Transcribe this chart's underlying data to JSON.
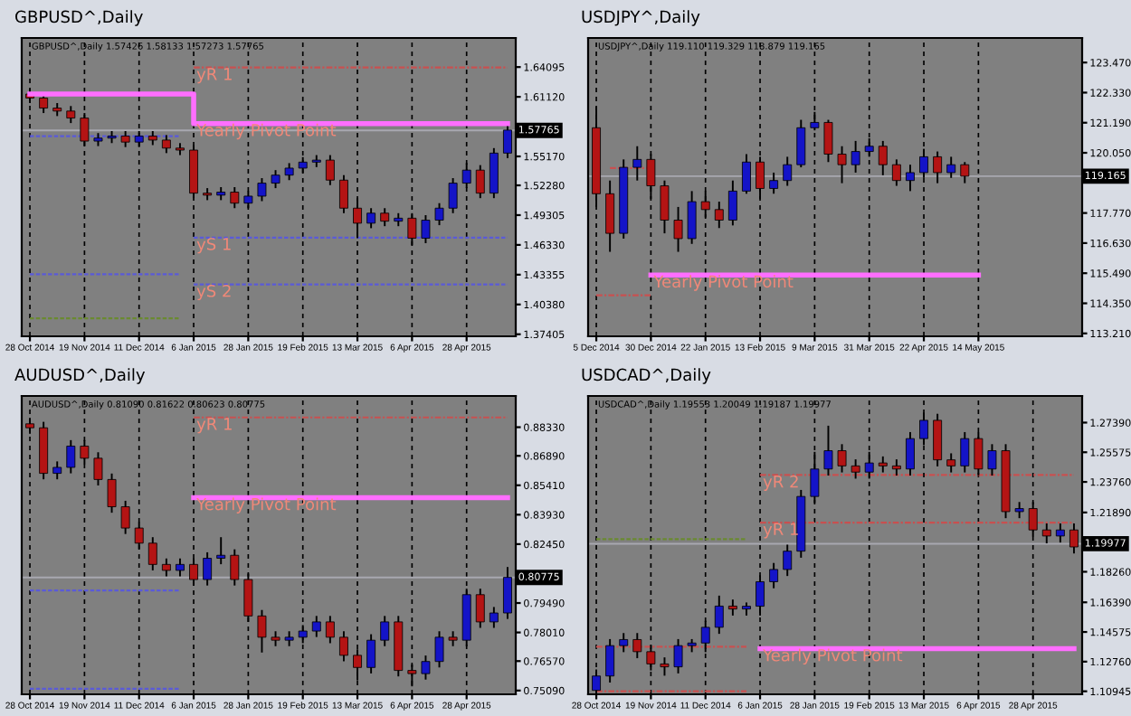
{
  "chart_data": [
    {
      "type": "candlestick",
      "title": "GBPUSD^,Daily",
      "annotations": [
        "GBPUSD^,Daily 1.57426 1.58133 1.57273 1.57765"
      ],
      "categories": [
        "28 Oct 2014",
        null,
        null,
        null,
        "19 Nov 2014",
        null,
        null,
        null,
        "11 Dec 2014",
        null,
        null,
        null,
        "6 Jan 2015",
        null,
        null,
        null,
        "28 Jan 2015",
        null,
        null,
        null,
        "19 Feb 2015",
        null,
        null,
        null,
        "13 Mar 2015",
        null,
        null,
        null,
        "6 Apr 2015",
        null,
        null,
        null,
        "28 Apr 2015",
        null,
        null,
        null
      ],
      "ohlc": [
        [
          1.614,
          1.619,
          1.605,
          1.61
        ],
        [
          1.61,
          1.615,
          1.595,
          1.6
        ],
        [
          1.6,
          1.605,
          1.592,
          1.597
        ],
        [
          1.597,
          1.602,
          1.585,
          1.59
        ],
        [
          1.59,
          1.595,
          1.562,
          1.567
        ],
        [
          1.567,
          1.575,
          1.562,
          1.57
        ],
        [
          1.57,
          1.577,
          1.565,
          1.572
        ],
        [
          1.572,
          1.577,
          1.561,
          1.566
        ],
        [
          1.566,
          1.577,
          1.561,
          1.572
        ],
        [
          1.572,
          1.577,
          1.563,
          1.568
        ],
        [
          1.568,
          1.573,
          1.555,
          1.56
        ],
        [
          1.56,
          1.565,
          1.553,
          1.558
        ],
        [
          1.558,
          1.563,
          1.51,
          1.515
        ],
        [
          1.515,
          1.52,
          1.508,
          1.513
        ],
        [
          1.513,
          1.521,
          1.508,
          1.516
        ],
        [
          1.516,
          1.521,
          1.5,
          1.505
        ],
        [
          1.505,
          1.517,
          1.5,
          1.512
        ],
        [
          1.512,
          1.53,
          1.507,
          1.525
        ],
        [
          1.525,
          1.538,
          1.52,
          1.533
        ],
        [
          1.533,
          1.545,
          1.528,
          1.54
        ],
        [
          1.54,
          1.551,
          1.535,
          1.546
        ],
        [
          1.546,
          1.553,
          1.541,
          1.548
        ],
        [
          1.548,
          1.553,
          1.523,
          1.528
        ],
        [
          1.528,
          1.533,
          1.495,
          1.5
        ],
        [
          1.5,
          1.51,
          1.47,
          1.485
        ],
        [
          1.485,
          1.5,
          1.48,
          1.495
        ],
        [
          1.495,
          1.5,
          1.482,
          1.487
        ],
        [
          1.487,
          1.495,
          1.482,
          1.49
        ],
        [
          1.49,
          1.495,
          1.463,
          1.47
        ],
        [
          1.47,
          1.493,
          1.465,
          1.488
        ],
        [
          1.488,
          1.505,
          1.483,
          1.5
        ],
        [
          1.5,
          1.53,
          1.495,
          1.525
        ],
        [
          1.525,
          1.545,
          1.52,
          1.538
        ],
        [
          1.538,
          1.543,
          1.51,
          1.515
        ],
        [
          1.515,
          1.56,
          1.51,
          1.555
        ],
        [
          1.555,
          1.583,
          1.55,
          1.578
        ]
      ],
      "colors": [
        "#b41414",
        "#b41414",
        "#b41414",
        "#b41414",
        "#b41414",
        "#1414c8",
        "#1414c8",
        "#b41414",
        "#1414c8",
        "#b41414",
        "#b41414",
        "#b41414",
        "#b41414",
        "#b41414",
        "#1414c8",
        "#b41414",
        "#1414c8",
        "#1414c8",
        "#1414c8",
        "#1414c8",
        "#1414c8",
        "#1414c8",
        "#b41414",
        "#b41414",
        "#b41414",
        "#1414c8",
        "#b41414",
        "#1414c8",
        "#b41414",
        "#1414c8",
        "#1414c8",
        "#1414c8",
        "#1414c8",
        "#b41414",
        "#1414c8",
        "#1414c8"
      ],
      "series": [
        {
          "type": "step",
          "name": "Yearly Pivot Point",
          "color": "#ff6eff",
          "line_style": "solid",
          "values": [
            1.614,
            1.614,
            1.614,
            1.614,
            1.614,
            1.614,
            1.614,
            1.614,
            1.614,
            1.614,
            1.614,
            1.614,
            1.5845,
            1.5845,
            1.5845,
            1.5845,
            1.5845,
            1.5845,
            1.5845,
            1.5845,
            1.5845,
            1.5845,
            1.5845,
            1.5845,
            1.5845,
            1.5845,
            1.5845,
            1.5845,
            1.5845,
            1.5845,
            1.5845,
            1.5845,
            1.5845,
            1.5845,
            1.5845,
            1.5845
          ]
        },
        {
          "type": "line",
          "name": "yR 1",
          "color": "#c85050",
          "line_style": "dashdot",
          "values": [
            null,
            null,
            null,
            null,
            null,
            null,
            null,
            null,
            null,
            null,
            null,
            null,
            1.6405,
            1.6405,
            1.6405,
            1.6405,
            1.6405,
            1.6405,
            1.6405,
            1.6405,
            1.6405,
            1.6405,
            1.6405,
            1.6405,
            1.6405,
            1.6405,
            1.6405,
            1.6405,
            1.6405,
            1.6405,
            1.6405,
            1.6405,
            1.6405,
            1.6405,
            1.6405,
            1.6405
          ]
        },
        {
          "type": "line",
          "name": "yS 1",
          "color": "#5a5ad8",
          "line_style": "dashed",
          "values": [
            null,
            null,
            null,
            null,
            null,
            null,
            null,
            null,
            null,
            null,
            null,
            null,
            1.4706,
            1.4706,
            1.4706,
            1.4706,
            1.4706,
            1.4706,
            1.4706,
            1.4706,
            1.4706,
            1.4706,
            1.4706,
            1.4706,
            1.4706,
            1.4706,
            1.4706,
            1.4706,
            1.4706,
            1.4706,
            1.4706,
            1.4706,
            1.4706,
            1.4706,
            1.4706,
            1.4706
          ]
        },
        {
          "type": "line",
          "name": "yS 2",
          "color": "#5a5ad8",
          "line_style": "dashed",
          "values": [
            null,
            null,
            null,
            null,
            null,
            null,
            null,
            null,
            null,
            null,
            null,
            null,
            1.4238,
            1.4238,
            1.4238,
            1.4238,
            1.4238,
            1.4238,
            1.4238,
            1.4238,
            1.4238,
            1.4238,
            1.4238,
            1.4238,
            1.4238,
            1.4238,
            1.4238,
            1.4238,
            1.4238,
            1.4238,
            1.4238,
            1.4238,
            1.4238,
            1.4238,
            1.4238,
            1.4238
          ]
        },
        {
          "type": "line",
          "color": "#5a5ad8",
          "line_style": "dashed",
          "values": [
            1.572,
            1.572,
            1.572,
            1.572,
            1.572,
            1.572,
            1.572,
            1.572,
            1.572,
            1.572,
            1.572,
            1.572,
            null,
            null,
            null,
            null,
            null,
            null,
            null,
            null,
            null,
            null,
            null,
            null,
            null,
            null,
            null,
            null,
            null,
            null,
            null,
            null,
            null,
            null,
            null,
            null
          ]
        },
        {
          "type": "line",
          "color": "#5a5ad8",
          "line_style": "dashed",
          "values": [
            1.434,
            1.434,
            1.434,
            1.434,
            1.434,
            1.434,
            1.434,
            1.434,
            1.434,
            1.434,
            1.434,
            1.434,
            null,
            null,
            null,
            null,
            null,
            null,
            null,
            null,
            null,
            null,
            null,
            null,
            null,
            null,
            null,
            null,
            null,
            null,
            null,
            null,
            null,
            null,
            null,
            null
          ]
        },
        {
          "type": "line",
          "color": "#6a8a30",
          "line_style": "dashed",
          "values": [
            1.39,
            1.39,
            1.39,
            1.39,
            1.39,
            1.39,
            1.39,
            1.39,
            1.39,
            1.39,
            1.39,
            1.39,
            null,
            null,
            null,
            null,
            null,
            null,
            null,
            null,
            null,
            null,
            null,
            null,
            null,
            null,
            null,
            null,
            null,
            null,
            null,
            null,
            null,
            null,
            null,
            null
          ]
        }
      ],
      "ref_lines": [
        {
          "axis": "y",
          "value": 1.57765,
          "label": "1.57765",
          "color": "#a8a8b0"
        }
      ],
      "ylim": [
        1.372,
        1.67
      ],
      "yticks": [
        1.37405,
        {
          "value": 1.4038,
          "label": "1.40380"
        },
        1.43355,
        {
          "value": 1.4633,
          "label": "1.46330"
        },
        1.49305,
        {
          "value": 1.5228,
          "label": "1.52280"
        },
        {
          "value": 1.5517,
          "label": "1.55170"
        },
        {
          "value": 1.6112,
          "label": "1.61120"
        },
        1.64095
      ],
      "grid": "x"
    },
    {
      "type": "candlestick",
      "title": "USDJPY^,Daily",
      "annotations": [
        "USDJPY^,Daily 119.110 119.329 118.879 119.165"
      ],
      "categories": [
        "5 Dec 2014",
        null,
        null,
        null,
        "30 Dec 2014",
        null,
        null,
        null,
        "22 Jan 2015",
        null,
        null,
        null,
        "13 Feb 2015",
        null,
        null,
        null,
        "9 Mar 2015",
        null,
        null,
        null,
        "31 Mar 2015",
        null,
        null,
        null,
        "22 Apr 2015",
        null,
        null,
        null,
        "14 May 2015",
        null,
        null,
        null,
        null,
        null,
        null,
        null
      ],
      "ohlc": [
        [
          121.0,
          121.8,
          118.0,
          118.5
        ],
        [
          118.5,
          119.0,
          116.3,
          117.0
        ],
        [
          117.0,
          119.8,
          116.8,
          119.5
        ],
        [
          119.5,
          120.3,
          119.0,
          119.8
        ],
        [
          119.8,
          120.0,
          118.3,
          118.8
        ],
        [
          118.8,
          119.0,
          117.0,
          117.5
        ],
        [
          117.5,
          118.0,
          116.3,
          116.8
        ],
        [
          116.8,
          118.6,
          116.6,
          118.2
        ],
        [
          118.2,
          118.6,
          117.6,
          117.9
        ],
        [
          117.9,
          118.2,
          117.2,
          117.5
        ],
        [
          117.5,
          119.0,
          117.3,
          118.6
        ],
        [
          118.6,
          120.0,
          118.5,
          119.7
        ],
        [
          119.7,
          119.9,
          118.3,
          118.7
        ],
        [
          118.7,
          119.3,
          118.5,
          119.0
        ],
        [
          119.0,
          119.9,
          118.8,
          119.6
        ],
        [
          119.6,
          121.3,
          119.5,
          121.0
        ],
        [
          121.0,
          121.6,
          120.9,
          121.2
        ],
        [
          121.2,
          121.3,
          119.7,
          120.0
        ],
        [
          120.0,
          120.3,
          118.9,
          119.6
        ],
        [
          119.6,
          120.5,
          119.3,
          120.1
        ],
        [
          120.1,
          120.6,
          119.9,
          120.3
        ],
        [
          120.3,
          120.5,
          119.2,
          119.6
        ],
        [
          119.6,
          119.8,
          118.8,
          119.0
        ],
        [
          119.0,
          119.6,
          118.6,
          119.3
        ],
        [
          119.3,
          120.2,
          119.1,
          119.9
        ],
        [
          119.9,
          120.1,
          118.9,
          119.3
        ],
        [
          119.3,
          119.9,
          119.1,
          119.6
        ],
        [
          119.6,
          119.7,
          118.9,
          119.165
        ],
        null,
        null,
        null,
        null,
        null,
        null,
        null,
        null
      ],
      "colors": [
        "#b41414",
        "#b41414",
        "#1414c8",
        "#1414c8",
        "#b41414",
        "#b41414",
        "#b41414",
        "#1414c8",
        "#b41414",
        "#b41414",
        "#1414c8",
        "#1414c8",
        "#b41414",
        "#1414c8",
        "#1414c8",
        "#1414c8",
        "#1414c8",
        "#b41414",
        "#b41414",
        "#1414c8",
        "#1414c8",
        "#b41414",
        "#b41414",
        "#1414c8",
        "#1414c8",
        "#b41414",
        "#1414c8",
        "#b41414",
        null,
        null,
        null,
        null,
        null,
        null,
        null,
        null
      ],
      "series": [
        {
          "type": "step",
          "name": "Yearly Pivot Point",
          "color": "#ff6eff",
          "line_style": "solid",
          "values": [
            null,
            null,
            null,
            null,
            115.42,
            115.42,
            115.42,
            115.42,
            115.42,
            115.42,
            115.42,
            115.42,
            115.42,
            115.42,
            115.42,
            115.42,
            115.42,
            115.42,
            115.42,
            115.42,
            115.42,
            115.42,
            115.42,
            115.42,
            115.42,
            115.42,
            115.42,
            115.42,
            115.42,
            null,
            null,
            null,
            null,
            null,
            null,
            null
          ]
        },
        {
          "type": "line",
          "color": "#c85050",
          "line_style": "dashdot",
          "values": [
            null,
            119.47,
            119.47,
            119.47,
            119.47,
            null,
            null,
            null,
            null,
            null,
            null,
            null,
            null,
            null,
            null,
            null,
            null,
            null,
            null,
            null,
            null,
            null,
            null,
            null,
            null,
            null,
            null,
            null,
            null,
            null,
            null,
            null,
            null,
            null,
            null,
            null
          ]
        },
        {
          "type": "line",
          "color": "#c85050",
          "line_style": "dashdot",
          "values": [
            114.65,
            114.65,
            114.65,
            114.65,
            114.65,
            null,
            null,
            null,
            null,
            null,
            null,
            null,
            null,
            null,
            null,
            null,
            null,
            null,
            null,
            null,
            null,
            null,
            null,
            null,
            null,
            null,
            null,
            null,
            null,
            null,
            null,
            null,
            null,
            null,
            null,
            null
          ]
        }
      ],
      "ref_lines": [
        {
          "axis": "y",
          "value": 119.165,
          "label": "119.165",
          "color": "#a8a8b0"
        }
      ],
      "ylim": [
        113.1,
        124.4
      ],
      "yticks": [
        {
          "value": 113.21,
          "label": "113.210"
        },
        {
          "value": 114.35,
          "label": "114.350"
        },
        {
          "value": 115.49,
          "label": "115.490"
        },
        {
          "value": 116.63,
          "label": "116.630"
        },
        {
          "value": 117.77,
          "label": "117.770"
        },
        {
          "value": 120.05,
          "label": "120.050"
        },
        {
          "value": 121.19,
          "label": "121.190"
        },
        {
          "value": 122.33,
          "label": "122.330"
        },
        {
          "value": 123.47,
          "label": "123.470"
        }
      ],
      "grid": "x"
    },
    {
      "type": "candlestick",
      "title": "AUDUSD^,Daily",
      "annotations": [
        "AUDUSD^,Daily 0.81090 0.81622 0.80623 0.80775"
      ],
      "categories": [
        "28 Oct 2014",
        null,
        null,
        null,
        "19 Nov 2014",
        null,
        null,
        null,
        "11 Dec 2014",
        null,
        null,
        null,
        "6 Jan 2015",
        null,
        null,
        null,
        "28 Jan 2015",
        null,
        null,
        null,
        "19 Feb 2015",
        null,
        null,
        null,
        "13 Mar 2015",
        null,
        null,
        null,
        "6 Apr 2015",
        null,
        null,
        null,
        "28 Apr 2015",
        null,
        null,
        null
      ],
      "ohlc": [
        [
          0.885,
          0.888,
          0.88,
          0.883
        ],
        [
          0.883,
          0.886,
          0.8571,
          0.8601
        ],
        [
          0.8601,
          0.8661,
          0.8571,
          0.8631
        ],
        [
          0.8631,
          0.8768,
          0.8601,
          0.8738
        ],
        [
          0.8738,
          0.8768,
          0.8647,
          0.8677
        ],
        [
          0.8677,
          0.8707,
          0.854,
          0.857
        ],
        [
          0.857,
          0.86,
          0.8403,
          0.8433
        ],
        [
          0.8433,
          0.8463,
          0.8296,
          0.8326
        ],
        [
          0.8326,
          0.8356,
          0.822,
          0.825
        ],
        [
          0.825,
          0.828,
          0.8113,
          0.8143
        ],
        [
          0.8143,
          0.8173,
          0.8083,
          0.8113
        ],
        [
          0.8113,
          0.8173,
          0.8083,
          0.8143
        ],
        [
          0.8143,
          0.8173,
          0.8037,
          0.8067
        ],
        [
          0.8067,
          0.8204,
          0.8037,
          0.8174
        ],
        [
          0.8174,
          0.828,
          0.8144,
          0.8189
        ],
        [
          0.8189,
          0.8219,
          0.8037,
          0.8067
        ],
        [
          0.8067,
          0.8097,
          0.7854,
          0.7884
        ],
        [
          0.7884,
          0.7914,
          0.77,
          0.7777
        ],
        [
          0.7777,
          0.7807,
          0.7732,
          0.7762
        ],
        [
          0.7762,
          0.7807,
          0.7732,
          0.7777
        ],
        [
          0.7777,
          0.7838,
          0.7747,
          0.7808
        ],
        [
          0.7808,
          0.7884,
          0.7778,
          0.7854
        ],
        [
          0.7854,
          0.7884,
          0.7747,
          0.7777
        ],
        [
          0.7777,
          0.7807,
          0.7656,
          0.7686
        ],
        [
          0.7686,
          0.7716,
          0.756,
          0.7625
        ],
        [
          0.7625,
          0.7792,
          0.7595,
          0.7762
        ],
        [
          0.7762,
          0.7884,
          0.7732,
          0.7854
        ],
        [
          0.7854,
          0.7884,
          0.758,
          0.761
        ],
        [
          0.761,
          0.764,
          0.753,
          0.7594
        ],
        [
          0.7594,
          0.7685,
          0.7564,
          0.7655
        ],
        [
          0.7655,
          0.7807,
          0.7625,
          0.7777
        ],
        [
          0.7777,
          0.7807,
          0.7732,
          0.7762
        ],
        [
          0.7762,
          0.8021,
          0.7732,
          0.7991
        ],
        [
          0.7991,
          0.8021,
          0.7824,
          0.7854
        ],
        [
          0.7854,
          0.7929,
          0.7824,
          0.7899
        ],
        [
          0.7899,
          0.813,
          0.7869,
          0.8078
        ]
      ],
      "colors": [
        "#b41414",
        "#b41414",
        "#1414c8",
        "#1414c8",
        "#b41414",
        "#b41414",
        "#b41414",
        "#b41414",
        "#b41414",
        "#b41414",
        "#b41414",
        "#1414c8",
        "#b41414",
        "#1414c8",
        "#1414c8",
        "#b41414",
        "#b41414",
        "#b41414",
        "#b41414",
        "#1414c8",
        "#1414c8",
        "#1414c8",
        "#b41414",
        "#b41414",
        "#b41414",
        "#1414c8",
        "#1414c8",
        "#b41414",
        "#b41414",
        "#1414c8",
        "#1414c8",
        "#b41414",
        "#1414c8",
        "#b41414",
        "#1414c8",
        "#1414c8"
      ],
      "series": [
        {
          "type": "step",
          "name": "Yearly Pivot Point",
          "color": "#ff6eff",
          "line_style": "solid",
          "values": [
            null,
            null,
            null,
            null,
            null,
            null,
            null,
            null,
            null,
            null,
            null,
            null,
            0.8479,
            0.8479,
            0.8479,
            0.8479,
            0.8479,
            0.8479,
            0.8479,
            0.8479,
            0.8479,
            0.8479,
            0.8479,
            0.8479,
            0.8479,
            0.8479,
            0.8479,
            0.8479,
            0.8479,
            0.8479,
            0.8479,
            0.8479,
            0.8479,
            0.8479,
            0.8479,
            0.8479
          ]
        },
        {
          "type": "line",
          "name": "yR 1",
          "color": "#c85050",
          "line_style": "dashdot",
          "values": [
            null,
            null,
            null,
            null,
            null,
            null,
            null,
            null,
            null,
            null,
            null,
            null,
            0.8882,
            0.8882,
            0.8882,
            0.8882,
            0.8882,
            0.8882,
            0.8882,
            0.8882,
            0.8882,
            0.8882,
            0.8882,
            0.8882,
            0.8882,
            0.8882,
            0.8882,
            0.8882,
            0.8882,
            0.8882,
            0.8882,
            0.8882,
            0.8882,
            0.8882,
            0.8882,
            0.8882
          ]
        },
        {
          "type": "line",
          "color": "#5a5ad8",
          "line_style": "dashed",
          "values": [
            0.8012,
            0.8012,
            0.8012,
            0.8012,
            0.8012,
            0.8012,
            0.8012,
            0.8012,
            0.8012,
            0.8012,
            0.8012,
            0.8012,
            null,
            null,
            null,
            null,
            null,
            null,
            null,
            null,
            null,
            null,
            null,
            null,
            null,
            null,
            null,
            null,
            null,
            null,
            null,
            null,
            null,
            null,
            null,
            null
          ]
        },
        {
          "type": "line",
          "color": "#5a5ad8",
          "line_style": "dashed",
          "values": [
            0.7518,
            0.7518,
            0.7518,
            0.7518,
            0.7518,
            0.7518,
            0.7518,
            0.7518,
            0.7518,
            0.7518,
            0.7518,
            0.7518,
            null,
            null,
            null,
            null,
            null,
            null,
            null,
            null,
            null,
            null,
            null,
            null,
            null,
            null,
            null,
            null,
            null,
            null,
            null,
            null,
            null,
            null,
            null,
            null
          ]
        }
      ],
      "ref_lines": [
        {
          "axis": "y",
          "value": 0.80775,
          "label": "0.80775",
          "color": "#a8a8b0"
        }
      ],
      "ylim": [
        0.749,
        0.899
      ],
      "yticks": [
        {
          "value": 0.7509,
          "label": "0.75090"
        },
        {
          "value": 0.7657,
          "label": "0.76570"
        },
        {
          "value": 0.7801,
          "label": "0.78010"
        },
        {
          "value": 0.7949,
          "label": "0.79490"
        },
        {
          "value": 0.8245,
          "label": "0.82450"
        },
        {
          "value": 0.8393,
          "label": "0.83930"
        },
        {
          "value": 0.8541,
          "label": "0.85410"
        },
        {
          "value": 0.8689,
          "label": "0.86890"
        },
        {
          "value": 0.8833,
          "label": "0.88330"
        }
      ],
      "grid": "x"
    },
    {
      "type": "candlestick",
      "title": "USDCAD^,Daily",
      "annotations": [
        "USDCAD^,Daily 1.19553 1.20049 1.19187 1.19977"
      ],
      "categories": [
        "28 Oct 2014",
        null,
        null,
        null,
        "19 Nov 2014",
        null,
        null,
        null,
        "11 Dec 2014",
        null,
        null,
        null,
        "6 Jan 2015",
        null,
        null,
        null,
        "28 Jan 2015",
        null,
        null,
        null,
        "19 Feb 2015",
        null,
        null,
        null,
        "13 Mar 2015",
        null,
        null,
        null,
        "6 Apr 2015",
        null,
        null,
        null,
        "28 Apr 2015",
        null,
        null,
        null
      ],
      "ohlc": [
        [
          1.11,
          1.1228,
          1.106,
          1.1188
        ],
        [
          1.1188,
          1.1414,
          1.1148,
          1.1374
        ],
        [
          1.1374,
          1.1451,
          1.1334,
          1.1411
        ],
        [
          1.1411,
          1.1451,
          1.1297,
          1.1337
        ],
        [
          1.1337,
          1.1377,
          1.1222,
          1.1262
        ],
        [
          1.1262,
          1.1302,
          1.119,
          1.1244
        ],
        [
          1.1244,
          1.1414,
          1.1204,
          1.1374
        ],
        [
          1.1374,
          1.1414,
          1.1334,
          1.139
        ],
        [
          1.139,
          1.1526,
          1.1334,
          1.1486
        ],
        [
          1.1486,
          1.168,
          1.1446,
          1.1616
        ],
        [
          1.1616,
          1.1656,
          1.1558,
          1.1598
        ],
        [
          1.1598,
          1.1638,
          1.1558,
          1.1615
        ],
        [
          1.1615,
          1.1805,
          1.1558,
          1.1765
        ],
        [
          1.1765,
          1.188,
          1.1725,
          1.184
        ],
        [
          1.184,
          1.1992,
          1.18,
          1.1952
        ],
        [
          1.1952,
          1.2327,
          1.1912,
          1.2287
        ],
        [
          1.2287,
          1.256,
          1.2247,
          1.2455
        ],
        [
          1.2455,
          1.272,
          1.2415,
          1.2567
        ],
        [
          1.2567,
          1.2607,
          1.2434,
          1.2474
        ],
        [
          1.2474,
          1.2514,
          1.2396,
          1.2436
        ],
        [
          1.2436,
          1.256,
          1.2396,
          1.2492
        ],
        [
          1.2492,
          1.2532,
          1.2434,
          1.2474
        ],
        [
          1.2474,
          1.2514,
          1.2415,
          1.2455
        ],
        [
          1.2455,
          1.2681,
          1.2415,
          1.2641
        ],
        [
          1.2641,
          1.28,
          1.2601,
          1.2753
        ],
        [
          1.2753,
          1.2793,
          1.2471,
          1.2511
        ],
        [
          1.2511,
          1.2551,
          1.2434,
          1.2474
        ],
        [
          1.2474,
          1.2681,
          1.2434,
          1.2641
        ],
        [
          1.2641,
          1.2681,
          1.2415,
          1.2455
        ],
        [
          1.2455,
          1.2607,
          1.2415,
          1.2567
        ],
        [
          1.2567,
          1.2607,
          1.2154,
          1.2194
        ],
        [
          1.2194,
          1.2253,
          1.2154,
          1.2213
        ],
        [
          1.2213,
          1.2253,
          1.2042,
          1.2082
        ],
        [
          1.2082,
          1.2122,
          1.2,
          1.2045
        ],
        [
          1.2045,
          1.2122,
          1.2005,
          1.2082
        ],
        [
          1.2082,
          1.2122,
          1.1938,
          1.1978
        ]
      ],
      "colors": [
        "#1414c8",
        "#1414c8",
        "#1414c8",
        "#b41414",
        "#b41414",
        "#b41414",
        "#1414c8",
        "#1414c8",
        "#1414c8",
        "#1414c8",
        "#b41414",
        "#1414c8",
        "#1414c8",
        "#1414c8",
        "#1414c8",
        "#1414c8",
        "#1414c8",
        "#1414c8",
        "#b41414",
        "#b41414",
        "#1414c8",
        "#b41414",
        "#b41414",
        "#1414c8",
        "#1414c8",
        "#b41414",
        "#b41414",
        "#1414c8",
        "#b41414",
        "#1414c8",
        "#b41414",
        "#1414c8",
        "#b41414",
        "#b41414",
        "#1414c8",
        "#b41414"
      ],
      "series": [
        {
          "type": "step",
          "name": "Yearly Pivot Point",
          "color": "#ff6eff",
          "line_style": "solid",
          "values": [
            null,
            null,
            null,
            null,
            null,
            null,
            null,
            null,
            null,
            null,
            null,
            null,
            1.1355,
            1.1355,
            1.1355,
            1.1355,
            1.1355,
            1.1355,
            1.1355,
            1.1355,
            1.1355,
            1.1355,
            1.1355,
            1.1355,
            1.1355,
            1.1355,
            1.1355,
            1.1355,
            1.1355,
            1.1355,
            1.1355,
            1.1355,
            1.1355,
            1.1355,
            1.1355,
            1.1355
          ]
        },
        {
          "type": "line",
          "name": "yR 2",
          "color": "#c85050",
          "line_style": "dashdot",
          "values": [
            null,
            null,
            null,
            null,
            null,
            null,
            null,
            null,
            null,
            null,
            null,
            null,
            1.2418,
            1.2418,
            1.2418,
            1.2418,
            1.2418,
            1.2418,
            1.2418,
            1.2418,
            1.2418,
            1.2418,
            1.2418,
            1.2418,
            1.2418,
            1.2418,
            1.2418,
            1.2418,
            1.2418,
            1.2418,
            1.2418,
            1.2418,
            1.2418,
            1.2418,
            1.2418,
            1.2418
          ]
        },
        {
          "type": "line",
          "name": "yR 1",
          "color": "#c85050",
          "line_style": "dashdot",
          "values": [
            null,
            null,
            null,
            null,
            null,
            null,
            null,
            null,
            null,
            null,
            null,
            null,
            1.2127,
            1.2127,
            1.2127,
            1.2127,
            1.2127,
            1.2127,
            1.2127,
            1.2127,
            1.2127,
            1.2127,
            1.2127,
            1.2127,
            1.2127,
            1.2127,
            1.2127,
            1.2127,
            1.2127,
            1.2127,
            1.2127,
            1.2127,
            1.2127,
            1.2127,
            1.2127,
            1.2127
          ]
        },
        {
          "type": "line",
          "color": "#c85050",
          "line_style": "dashdot",
          "values": [
            1.1367,
            1.1367,
            1.1367,
            1.1367,
            1.1367,
            1.1367,
            1.1367,
            1.1367,
            1.1367,
            1.1367,
            1.1367,
            1.1367,
            null,
            null,
            null,
            null,
            null,
            null,
            null,
            null,
            null,
            null,
            null,
            null,
            null,
            null,
            null,
            null,
            null,
            null,
            null,
            null,
            null,
            null,
            null,
            null
          ]
        },
        {
          "type": "line",
          "color": "#c85050",
          "line_style": "dashdot",
          "values": [
            1.1095,
            1.1095,
            1.1095,
            1.1095,
            1.1095,
            1.1095,
            1.1095,
            1.1095,
            1.1095,
            1.1095,
            1.1095,
            1.1095,
            null,
            null,
            null,
            null,
            null,
            null,
            null,
            null,
            null,
            null,
            null,
            null,
            null,
            null,
            null,
            null,
            null,
            null,
            null,
            null,
            null,
            null,
            null,
            null
          ]
        },
        {
          "type": "line",
          "color": "#6a8a30",
          "line_style": "dashed",
          "values": [
            1.2026,
            1.2026,
            1.2026,
            1.2026,
            1.2026,
            1.2026,
            1.2026,
            1.2026,
            1.2026,
            1.2026,
            1.2026,
            1.2026,
            null,
            null,
            null,
            null,
            null,
            null,
            null,
            null,
            null,
            null,
            null,
            null,
            null,
            null,
            null,
            null,
            null,
            null,
            null,
            null,
            null,
            null,
            null,
            null
          ]
        }
      ],
      "ref_lines": [
        {
          "axis": "y",
          "value": 1.19977,
          "label": "1.19977",
          "color": "#a8a8b0"
        }
      ],
      "ylim": [
        1.1076,
        1.2902
      ],
      "yticks": [
        1.10945,
        {
          "value": 1.1276,
          "label": "1.12760"
        },
        1.14575,
        {
          "value": 1.1639,
          "label": "1.16390"
        },
        {
          "value": 1.1826,
          "label": "1.18260"
        },
        {
          "value": 1.2189,
          "label": "1.21890"
        },
        {
          "value": 1.2376,
          "label": "1.23760"
        },
        1.25575,
        {
          "value": 1.2739,
          "label": "1.27390"
        }
      ],
      "grid": "x"
    }
  ]
}
